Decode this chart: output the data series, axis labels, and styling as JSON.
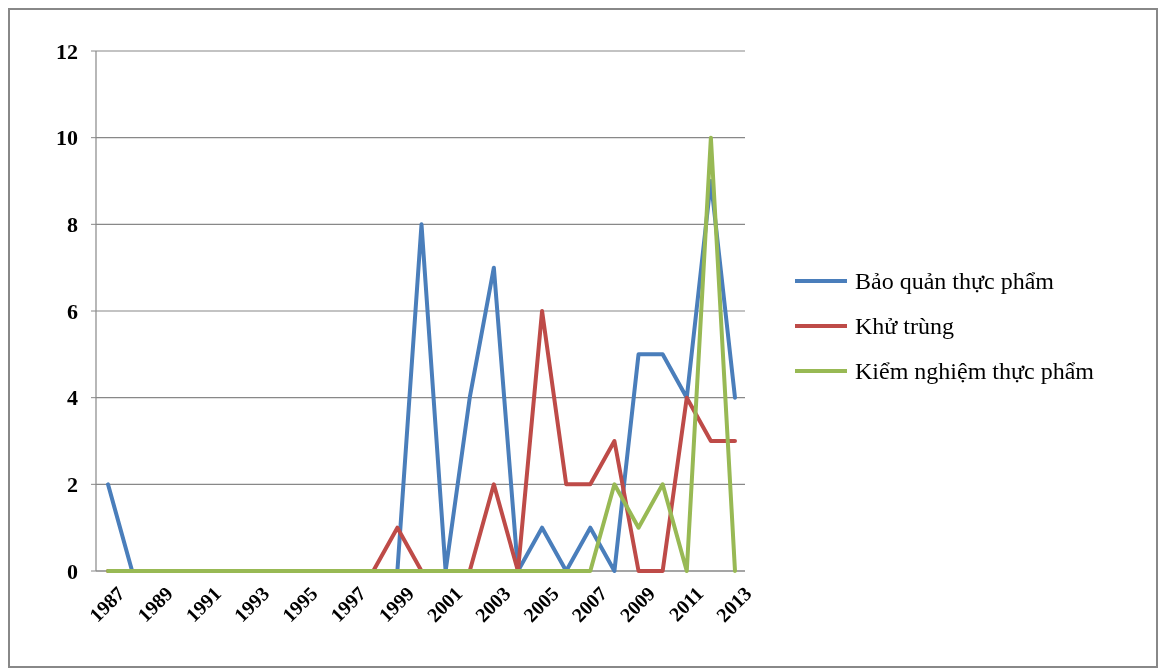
{
  "chart_data": {
    "type": "line",
    "categories": [
      "1987",
      null,
      "1989",
      null,
      "1991",
      null,
      "1993",
      null,
      "1995",
      null,
      "1997",
      null,
      "1999",
      null,
      "2001",
      null,
      "2003",
      null,
      "2005",
      null,
      "2007",
      null,
      "2009",
      null,
      "2011",
      null,
      "2013"
    ],
    "series": [
      {
        "name": "Bảo quản thực phẩm",
        "color": "#4a7ebb",
        "values": [
          2,
          0,
          0,
          0,
          0,
          0,
          0,
          0,
          0,
          0,
          0,
          0,
          0,
          8,
          0,
          4,
          7,
          0,
          1,
          0,
          1,
          0,
          5,
          5,
          4,
          9,
          4
        ]
      },
      {
        "name": "Khử trùng",
        "color": "#be4b48",
        "values": [
          0,
          0,
          0,
          0,
          0,
          0,
          0,
          0,
          0,
          0,
          0,
          0,
          1,
          0,
          0,
          0,
          2,
          0,
          6,
          2,
          2,
          3,
          0,
          0,
          4,
          3,
          3
        ]
      },
      {
        "name": "Kiểm nghiệm thực phẩm",
        "color": "#98b954",
        "values": [
          0,
          0,
          0,
          0,
          0,
          0,
          0,
          0,
          0,
          0,
          0,
          0,
          0,
          0,
          0,
          0,
          0,
          0,
          0,
          0,
          0,
          2,
          1,
          2,
          0,
          10,
          0
        ]
      }
    ],
    "ylim": [
      0,
      12
    ],
    "yticks": [
      0,
      2,
      4,
      6,
      8,
      10,
      12
    ],
    "grid": "y",
    "legend": "right",
    "marker": "none",
    "line_style": "solid"
  }
}
